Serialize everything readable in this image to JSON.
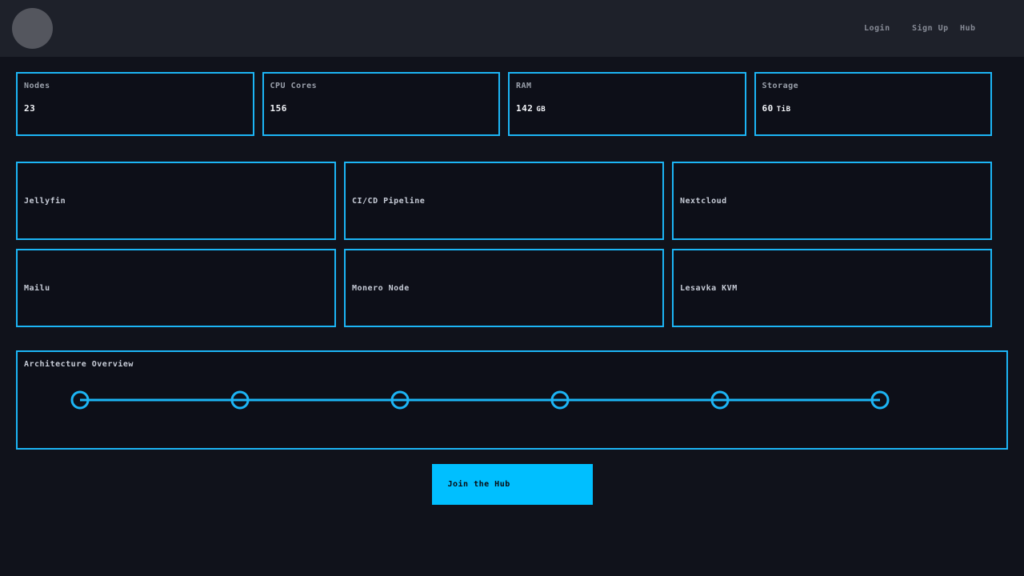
{
  "navbar": {
    "links": [
      {
        "label": "Login"
      },
      {
        "label": "Sign Up"
      },
      {
        "label": "Hub"
      }
    ]
  },
  "stats": [
    {
      "label": "Nodes",
      "value": "23",
      "unit": ""
    },
    {
      "label": "CPU Cores",
      "value": "156",
      "unit": ""
    },
    {
      "label": "RAM",
      "value": "142",
      "unit": "GB"
    },
    {
      "label": "Storage",
      "value": "60",
      "unit": "TiB"
    }
  ],
  "services": [
    {
      "name": "Jellyfin"
    },
    {
      "name": "CI/CD Pipeline"
    },
    {
      "name": "Nextcloud"
    },
    {
      "name": "Mailu"
    },
    {
      "name": "Monero Node"
    },
    {
      "name": "Lesavka KVM"
    }
  ],
  "architecture": {
    "title": "Architecture Overview",
    "node_count": 6
  },
  "cta": {
    "label": "Join the Hub"
  },
  "colors": {
    "accent": "#1cb5f5",
    "button": "#00bfff",
    "page_bg": "#10121b",
    "navbar_bg": "#1e212a",
    "card_bg": "#0d0f18"
  }
}
